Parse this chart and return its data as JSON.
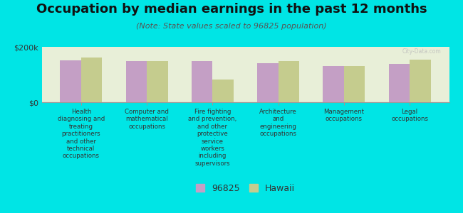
{
  "title": "Occupation by median earnings in the past 12 months",
  "subtitle": "(Note: State values scaled to 96825 population)",
  "categories": [
    "Health\ndiagnosing and\ntreating\npractitioners\nand other\ntechnical\noccupations",
    "Computer and\nmathematical\noccupations",
    "Fire fighting\nand prevention,\nand other\nprotective\nservice\nworkers\nincluding\nsupervisors",
    "Architecture\nand\nengineering\noccupations",
    "Management\noccupations",
    "Legal\noccupations"
  ],
  "values_96825": [
    152000,
    148000,
    148000,
    140000,
    130000,
    138000
  ],
  "values_hawaii": [
    162000,
    148000,
    82000,
    150000,
    130000,
    155000
  ],
  "color_96825": "#c49fc5",
  "color_hawaii": "#c5cc8e",
  "background_color": "#00e5e5",
  "plot_bg_color": "#e8efd8",
  "ylim": [
    0,
    200000
  ],
  "ytick_labels": [
    "$0",
    "$200k"
  ],
  "legend_label_96825": "96825",
  "legend_label_hawaii": "Hawaii",
  "bar_width": 0.32,
  "title_fontsize": 13,
  "subtitle_fontsize": 8,
  "xlabel_fontsize": 6.2,
  "legend_fontsize": 9
}
